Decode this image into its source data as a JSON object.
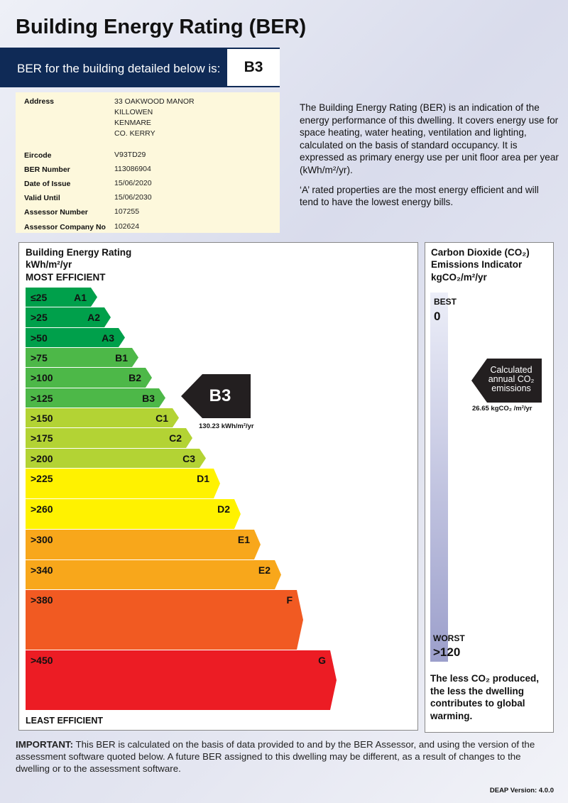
{
  "title": "Building Energy Rating (BER)",
  "banner": {
    "text": "BER for the building detailed below is:",
    "rating": "B3"
  },
  "details": {
    "address_label": "Address",
    "address_lines": [
      "33 OAKWOOD MANOR",
      "KILLOWEN",
      "KENMARE",
      "CO. KERRY"
    ],
    "rows": [
      {
        "label": "Eircode",
        "value": "V93TD29"
      },
      {
        "label": "BER Number",
        "value": "113086904"
      },
      {
        "label": "Date of Issue",
        "value": "15/06/2020"
      },
      {
        "label": "Valid Until",
        "value": "15/06/2030"
      },
      {
        "label": "Assessor Number",
        "value": "107255"
      },
      {
        "label": "Assessor Company No",
        "value": "102624"
      }
    ]
  },
  "intro": {
    "p1": "The Building Energy Rating (BER) is an indication of the energy performance of this dwelling.  It covers energy use for space heating, water heating, ventilation and lighting, calculated on the basis of standard occupancy. It is expressed as primary energy use per unit floor area per year (kWh/m²/yr).",
    "p2": "‘A’ rated properties are the most energy efficient and will tend to have the lowest energy bills."
  },
  "scale": {
    "heading1": "Building Energy Rating",
    "heading2": "kWh/m²/yr",
    "top_label": "MOST EFFICIENT",
    "bottom_label": "LEAST EFFICIENT",
    "bands": [
      {
        "range": "≤25",
        "grade": "A1",
        "color": "#00a04b"
      },
      {
        "range": ">25",
        "grade": "A2",
        "color": "#00a04b"
      },
      {
        "range": ">50",
        "grade": "A3",
        "color": "#00a04b"
      },
      {
        "range": ">75",
        "grade": "B1",
        "color": "#4db848"
      },
      {
        "range": ">100",
        "grade": "B2",
        "color": "#4db848"
      },
      {
        "range": ">125",
        "grade": "B3",
        "color": "#4db848"
      },
      {
        "range": ">150",
        "grade": "C1",
        "color": "#b3d334"
      },
      {
        "range": ">175",
        "grade": "C2",
        "color": "#b3d334"
      },
      {
        "range": ">200",
        "grade": "C3",
        "color": "#b3d334"
      },
      {
        "range": ">225",
        "grade": "D1",
        "color": "#fff200"
      },
      {
        "range": ">260",
        "grade": "D2",
        "color": "#fff200"
      },
      {
        "range": ">300",
        "grade": "E1",
        "color": "#f8a71b"
      },
      {
        "range": ">340",
        "grade": "E2",
        "color": "#f8a71b"
      },
      {
        "range": ">380",
        "grade": "F",
        "color": "#f15a22"
      },
      {
        "range": ">450",
        "grade": "G",
        "color": "#ec1c24"
      }
    ],
    "pointer": {
      "grade": "B3",
      "value": "130.23 kWh/m²/yr"
    }
  },
  "co2": {
    "heading1": "Carbon Dioxide (CO₂)",
    "heading2": "Emissions Indicator",
    "heading3": "kgCO₂/m²/yr",
    "best": "BEST",
    "best_value": "0",
    "worst": "WORST",
    "worst_value": ">120",
    "pointer_text": [
      "Calculated",
      "annual CO₂",
      "emissions"
    ],
    "value": "26.65 kgCO₂ /m²/yr",
    "footnote": "The less CO₂ produced, the less the dwelling contributes to global warming."
  },
  "important": {
    "label": "IMPORTANT:",
    "text": " This BER is calculated on the basis of data provided to and by the BER Assessor, and using the version of the assessment software quoted below.  A future BER assigned to this dwelling may be different, as a result of changes to the dwelling or to the assessment software."
  },
  "deap_version": "DEAP Version: 4.0.0"
}
